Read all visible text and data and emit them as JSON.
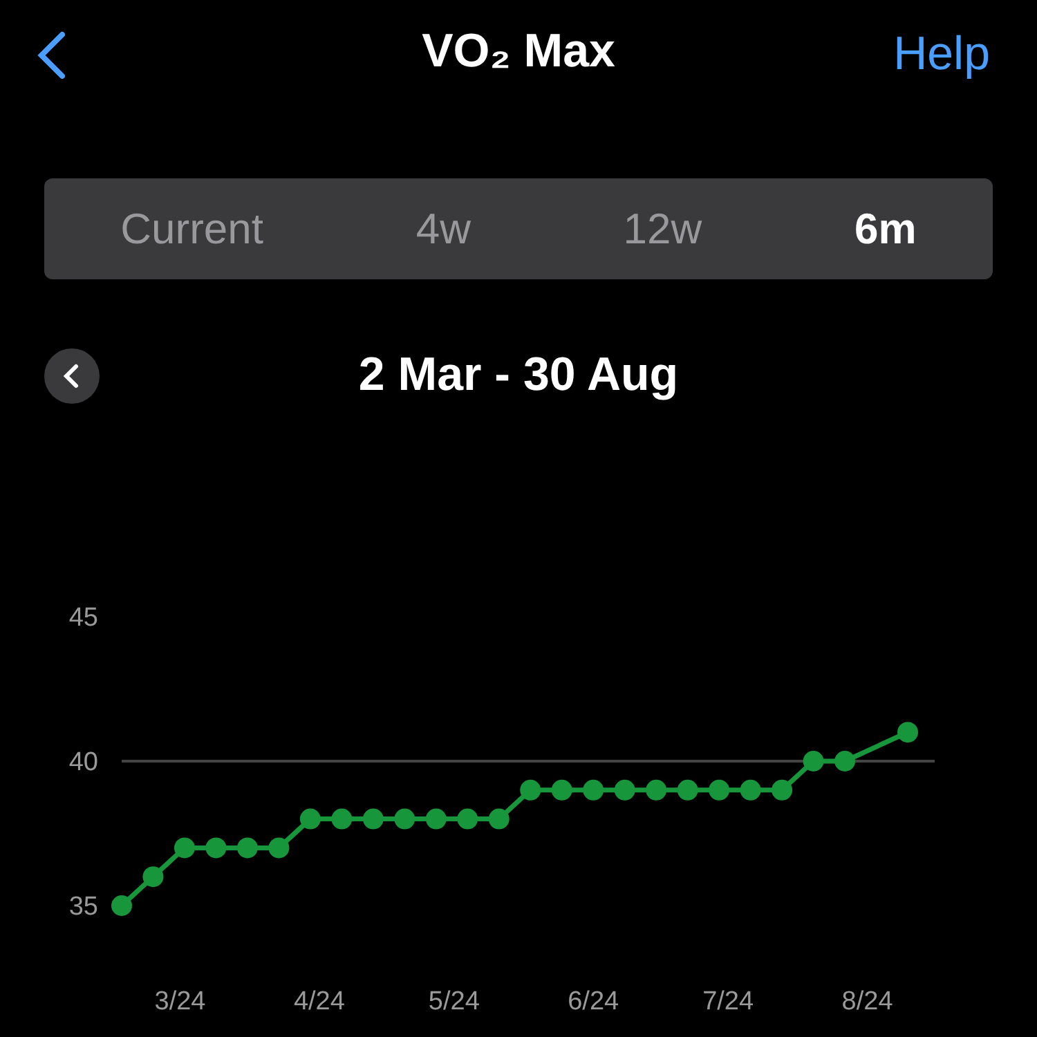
{
  "chart_data": {
    "type": "line",
    "title": "VO₂ Max",
    "subtitle": "2 Mar - 30 Aug",
    "annotations": [
      "Help",
      "Current",
      "4w",
      "12w",
      "6m"
    ],
    "x": [
      "2024-03-02",
      "2024-03-09",
      "2024-03-16",
      "2024-03-23",
      "2024-03-30",
      "2024-04-06",
      "2024-04-13",
      "2024-04-20",
      "2024-04-27",
      "2024-05-04",
      "2024-05-11",
      "2024-05-18",
      "2024-05-25",
      "2024-06-01",
      "2024-06-08",
      "2024-06-15",
      "2024-06-22",
      "2024-06-29",
      "2024-07-06",
      "2024-07-13",
      "2024-07-20",
      "2024-07-27",
      "2024-08-03",
      "2024-08-10",
      "2024-08-24"
    ],
    "series": [
      {
        "color": "#17963c",
        "values": [
          35,
          36,
          37,
          37,
          37,
          37,
          38,
          38,
          38,
          38,
          38,
          38,
          38,
          39,
          39,
          39,
          39,
          39,
          39,
          39,
          39,
          39,
          40,
          40,
          41
        ]
      }
    ],
    "xlim": [
      "2024-03-02",
      "2024-08-30"
    ],
    "xticks": [
      {
        "value": "2024-03-15",
        "label": "3/24"
      },
      {
        "value": "2024-04-15",
        "label": "4/24"
      },
      {
        "value": "2024-05-15",
        "label": "5/24"
      },
      {
        "value": "2024-06-15",
        "label": "6/24"
      },
      {
        "value": "2024-07-15",
        "label": "7/24"
      },
      {
        "value": "2024-08-15",
        "label": "8/24"
      }
    ],
    "ylim": [
      35,
      45
    ],
    "yticks": [
      35,
      40,
      45
    ],
    "grid": "y",
    "marker": "circle",
    "line_style": "solid"
  }
}
